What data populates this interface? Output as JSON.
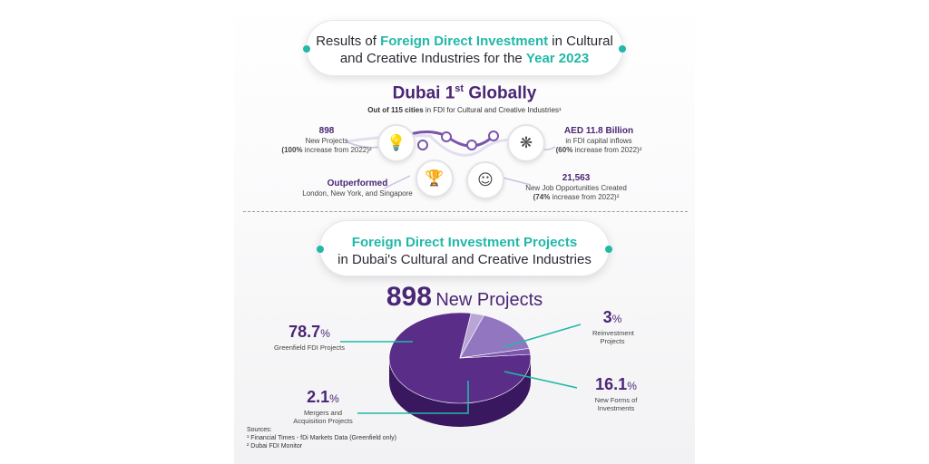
{
  "header": {
    "line1_pre": "Results of ",
    "line1_hl": "Foreign Direct Investment",
    "line1_post": " in Cultural",
    "line2_pre": "and Creative Industries for the ",
    "line2_hl": "Year 2023"
  },
  "highlight": {
    "title_pre": "Dubai 1",
    "title_sup": "st",
    "title_post": " Globally",
    "sub_bold": "Out of 115 cities",
    "sub_rest": " in FDI for Cultural and Creative Industries¹"
  },
  "stats": {
    "projects": {
      "head": "898",
      "line1": "New Projects",
      "line2_bold": "(100%",
      "line2_rest": " increase from 2022)²"
    },
    "capital": {
      "head": "AED 11.8 Billion",
      "line1": "in FDI capital inflows",
      "line2_bold": "(60%",
      "line2_rest": " increase from 2022)²"
    },
    "outperformed": {
      "head": "Outperformed",
      "line1": "London, New York, and Singapore"
    },
    "jobs": {
      "head": "21,563",
      "line1": "New Job Opportunities Created",
      "line2_bold": "(74%",
      "line2_rest": " increase from 2022)²"
    }
  },
  "icons": [
    "lightbulb-icon",
    "brain-icon",
    "trophy-icon",
    "head-idea-icon"
  ],
  "section2": {
    "line1": "Foreign Direct Investment Projects",
    "line2": "in Dubai's Cultural and Creative Industries"
  },
  "count": {
    "num": "898",
    "label": "New Projects"
  },
  "colors": {
    "purple": "#4b2674",
    "teal": "#22b8a8",
    "pie_main": "#5a2d88",
    "pie_light": "#b9a6d6",
    "pie_mid": "#9277c0",
    "pie_dark": "#7a55aa"
  },
  "chart_data": {
    "type": "pie",
    "title": "898 New Projects",
    "slices": [
      {
        "label": "Greenfield FDI Projects",
        "value": 78.7,
        "display": "78.7"
      },
      {
        "label": "Reinvestment Projects",
        "value": 3,
        "display": "3"
      },
      {
        "label": "New Forms of Investments",
        "value": 16.1,
        "display": "16.1"
      },
      {
        "label": "Mergers and Acquisition Projects",
        "value": 2.1,
        "display": "2.1"
      }
    ],
    "unit": "%"
  },
  "sources": {
    "title": "Sources:",
    "s1": "¹ Financial Times - fDi Markets Data (Greenfield only)",
    "s2": "² Dubai FDI Monitor"
  }
}
